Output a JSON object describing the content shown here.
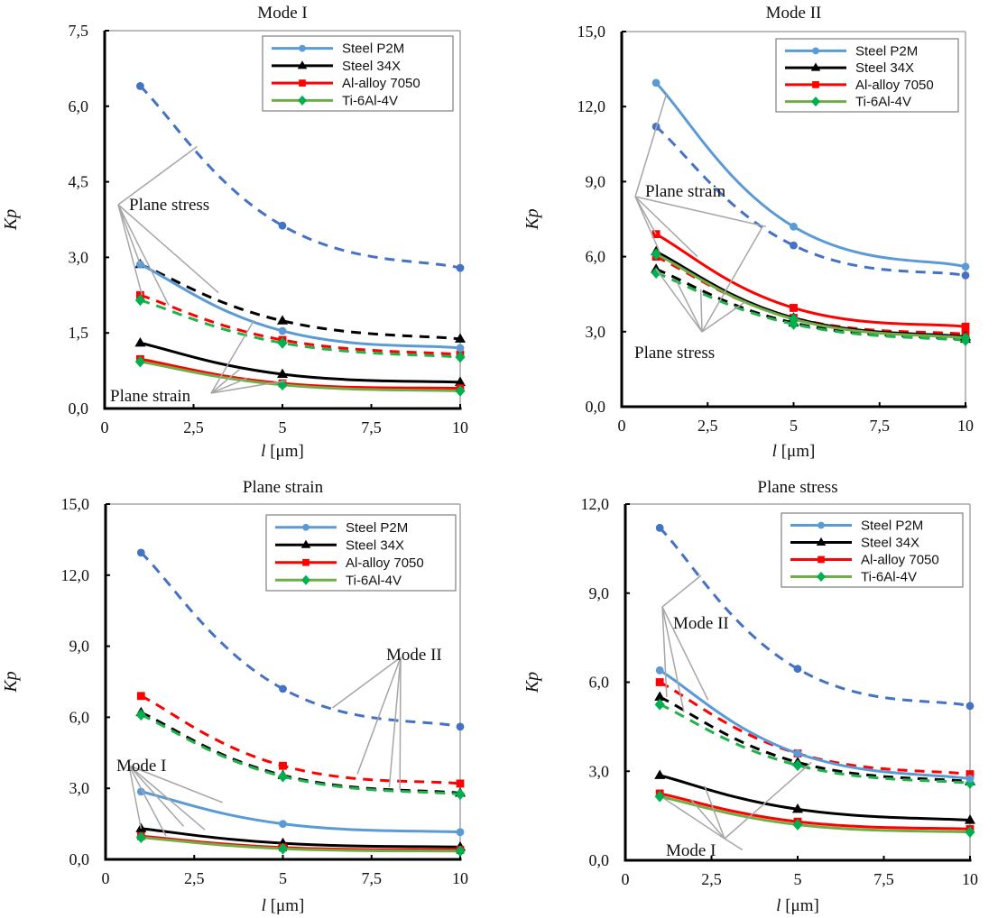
{
  "chart_data": [
    {
      "type": "line",
      "title": "Mode I",
      "xlabel": "l [μm]",
      "xlabel_italic_part": "l",
      "xlabel_unit": " [μm]",
      "ylabel": "Kp",
      "xlim": [
        0,
        10
      ],
      "ylim": [
        0,
        7.5
      ],
      "xticks": [
        "0",
        "2,5",
        "5",
        "7,5",
        "10"
      ],
      "yticks": [
        "0,0",
        "1,5",
        "3,0",
        "4,5",
        "6,0",
        "7,5"
      ],
      "x": [
        1,
        5,
        10
      ],
      "grid": false,
      "legend": "top-right",
      "series": [
        {
          "name": "Steel P2M",
          "condition": "Plane stress",
          "style": "dashed",
          "values": [
            6.4,
            3.63,
            2.79
          ]
        },
        {
          "name": "Steel 34X",
          "condition": "Plane stress",
          "style": "dashed",
          "values": [
            2.86,
            1.74,
            1.38
          ]
        },
        {
          "name": "Al-alloy 7050",
          "condition": "Plane stress",
          "style": "dashed",
          "values": [
            2.25,
            1.36,
            1.07
          ]
        },
        {
          "name": "Ti-6Al-4V",
          "condition": "Plane stress",
          "style": "dashed",
          "values": [
            2.15,
            1.3,
            1.02
          ]
        },
        {
          "name": "Steel P2M",
          "condition": "Plane strain",
          "style": "solid",
          "values": [
            2.86,
            1.54,
            1.2
          ]
        },
        {
          "name": "Steel 34X",
          "condition": "Plane strain",
          "style": "solid",
          "values": [
            1.3,
            0.68,
            0.52
          ]
        },
        {
          "name": "Al-alloy 7050",
          "condition": "Plane strain",
          "style": "solid",
          "values": [
            0.98,
            0.5,
            0.4
          ]
        },
        {
          "name": "Ti-6Al-4V",
          "condition": "Plane strain",
          "style": "solid",
          "values": [
            0.93,
            0.47,
            0.35
          ]
        }
      ],
      "annotations": [
        "Plane stress",
        "Plane strain"
      ]
    },
    {
      "type": "line",
      "title": "Mode II",
      "xlabel": "l [μm]",
      "xlabel_italic_part": "l",
      "xlabel_unit": " [μm]",
      "ylabel": "Kp",
      "xlim": [
        0,
        10
      ],
      "ylim": [
        0,
        15
      ],
      "xticks": [
        "0",
        "2,5",
        "5",
        "7,5",
        "10"
      ],
      "yticks": [
        "0,0",
        "3,0",
        "6,0",
        "9,0",
        "12,0",
        "15,0"
      ],
      "x": [
        1,
        5,
        10
      ],
      "grid": false,
      "legend": "top-right",
      "series": [
        {
          "name": "Steel P2M",
          "condition": "Plane strain",
          "style": "solid",
          "values": [
            12.95,
            7.2,
            5.6
          ]
        },
        {
          "name": "Steel 34X",
          "condition": "Plane strain",
          "style": "solid",
          "values": [
            6.2,
            3.55,
            2.8
          ]
        },
        {
          "name": "Al-alloy 7050",
          "condition": "Plane strain",
          "style": "solid",
          "values": [
            6.9,
            3.95,
            3.2
          ]
        },
        {
          "name": "Ti-6Al-4V",
          "condition": "Plane strain",
          "style": "solid",
          "values": [
            6.1,
            3.5,
            2.75
          ]
        },
        {
          "name": "Steel P2M",
          "condition": "Plane stress",
          "style": "dashed",
          "values": [
            11.2,
            6.45,
            5.25
          ]
        },
        {
          "name": "Steel 34X",
          "condition": "Plane stress",
          "style": "dashed",
          "values": [
            5.5,
            3.35,
            2.7
          ]
        },
        {
          "name": "Al-alloy 7050",
          "condition": "Plane stress",
          "style": "dashed",
          "values": [
            6.0,
            3.55,
            2.9
          ]
        },
        {
          "name": "Ti-6Al-4V",
          "condition": "Plane stress",
          "style": "dashed",
          "values": [
            5.35,
            3.3,
            2.65
          ]
        }
      ],
      "annotations": [
        "Plane strain",
        "Plane stress"
      ]
    },
    {
      "type": "line",
      "title": "Plane strain",
      "xlabel": "l [μm]",
      "xlabel_italic_part": "l",
      "xlabel_unit": " [μm]",
      "ylabel": "Kp",
      "xlim": [
        0,
        10
      ],
      "ylim": [
        0,
        15
      ],
      "xticks": [
        "0",
        "2,5",
        "5",
        "7,5",
        "10"
      ],
      "yticks": [
        "0,0",
        "3,0",
        "6,0",
        "9,0",
        "12,0",
        "15,0"
      ],
      "x": [
        1,
        5,
        10
      ],
      "grid": false,
      "legend": "top-right",
      "series": [
        {
          "name": "Steel P2M",
          "condition": "Mode II",
          "style": "dashed",
          "values": [
            12.95,
            7.2,
            5.6
          ]
        },
        {
          "name": "Steel 34X",
          "condition": "Mode II",
          "style": "dashed",
          "values": [
            6.2,
            3.55,
            2.8
          ]
        },
        {
          "name": "Al-alloy 7050",
          "condition": "Mode II",
          "style": "dashed",
          "values": [
            6.9,
            3.95,
            3.2
          ]
        },
        {
          "name": "Ti-6Al-4V",
          "condition": "Mode II",
          "style": "dashed",
          "values": [
            6.1,
            3.5,
            2.75
          ]
        },
        {
          "name": "Steel P2M",
          "condition": "Mode I",
          "style": "solid",
          "values": [
            2.86,
            1.5,
            1.15
          ]
        },
        {
          "name": "Steel 34X",
          "condition": "Mode I",
          "style": "solid",
          "values": [
            1.3,
            0.68,
            0.52
          ]
        },
        {
          "name": "Al-alloy 7050",
          "condition": "Mode I",
          "style": "solid",
          "values": [
            0.98,
            0.5,
            0.4
          ]
        },
        {
          "name": "Ti-6Al-4V",
          "condition": "Mode I",
          "style": "solid",
          "values": [
            0.93,
            0.45,
            0.35
          ]
        }
      ],
      "annotations": [
        "Mode II",
        "Mode I"
      ]
    },
    {
      "type": "line",
      "title": "Plane stress",
      "xlabel": "l [μm]",
      "xlabel_italic_part": "l",
      "xlabel_unit": " [μm]",
      "ylabel": "Kp",
      "xlim": [
        0,
        10
      ],
      "ylim": [
        0,
        12
      ],
      "xticks": [
        "0",
        "2,5",
        "5",
        "7,5",
        "10"
      ],
      "yticks": [
        "0,0",
        "3,0",
        "6,0",
        "9,0",
        "12,0"
      ],
      "x": [
        1,
        5,
        10
      ],
      "grid": false,
      "legend": "top-right",
      "series": [
        {
          "name": "Steel P2M",
          "condition": "Mode II",
          "style": "dashed",
          "values": [
            11.2,
            6.45,
            5.2
          ]
        },
        {
          "name": "Steel 34X",
          "condition": "Mode II",
          "style": "dashed",
          "values": [
            5.5,
            3.3,
            2.65
          ]
        },
        {
          "name": "Al-alloy 7050",
          "condition": "Mode II",
          "style": "dashed",
          "values": [
            6.0,
            3.6,
            2.9
          ]
        },
        {
          "name": "Ti-6Al-4V",
          "condition": "Mode II",
          "style": "dashed",
          "values": [
            5.25,
            3.2,
            2.6
          ]
        },
        {
          "name": "Steel P2M",
          "condition": "Mode I",
          "style": "solid",
          "values": [
            6.4,
            3.6,
            2.75
          ]
        },
        {
          "name": "Steel 34X",
          "condition": "Mode I",
          "style": "solid",
          "values": [
            2.86,
            1.72,
            1.35
          ]
        },
        {
          "name": "Al-alloy 7050",
          "condition": "Mode I",
          "style": "solid",
          "values": [
            2.25,
            1.3,
            1.05
          ]
        },
        {
          "name": "Ti-6Al-4V",
          "condition": "Mode I",
          "style": "solid",
          "values": [
            2.15,
            1.2,
            0.95
          ]
        }
      ],
      "annotations": [
        "Mode II",
        "Mode I"
      ]
    }
  ],
  "legend": {
    "entries": [
      {
        "name": "Steel P2M",
        "marker": "circle",
        "color": "#5b9bd5",
        "dash_color": "#4472c4"
      },
      {
        "name": "Steel 34X",
        "marker": "triangle",
        "color": "#000000",
        "dash_color": "#000000"
      },
      {
        "name": "Al-alloy 7050",
        "marker": "square",
        "color": "#ff0000",
        "dash_color": "#ff0000"
      },
      {
        "name": "Ti-6Al-4V",
        "marker": "diamond",
        "color": "#70ad47",
        "dash_color": "#22b14c",
        "marker_color": "#00b050"
      }
    ]
  },
  "colors": {
    "axis": "#000000",
    "frame": "#a6a6a6",
    "leader": "#a6a6a6"
  }
}
